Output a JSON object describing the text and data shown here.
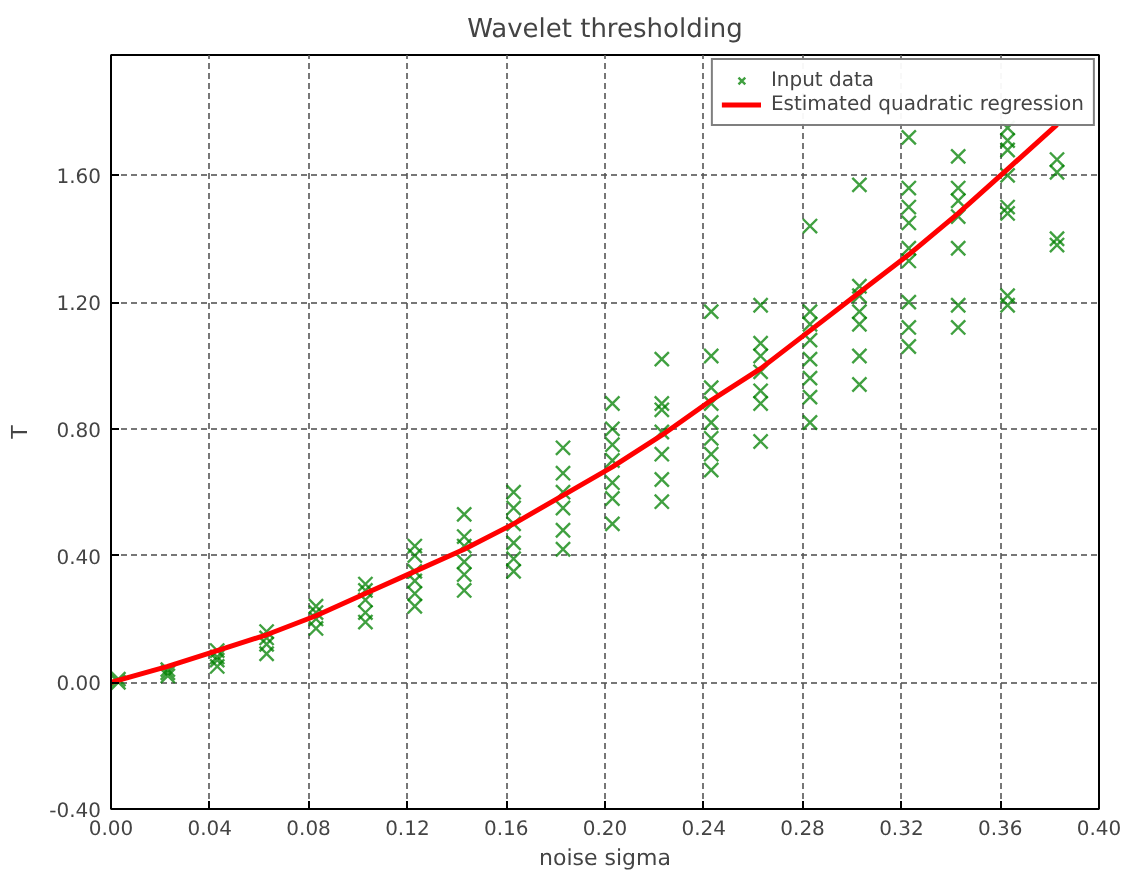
{
  "chart_data": {
    "type": "scatter",
    "title": "Wavelet thresholding",
    "xlabel": "noise sigma",
    "ylabel": "T",
    "xlim": [
      0,
      0.4
    ],
    "ylim": [
      -0.4,
      1.98
    ],
    "xticks": [
      {
        "value": 0,
        "label": "0.00"
      },
      {
        "value": 0.04,
        "label": "0.04"
      },
      {
        "value": 0.08,
        "label": "0.08"
      },
      {
        "value": 0.12,
        "label": "0.12"
      },
      {
        "value": 0.16,
        "label": "0.16"
      },
      {
        "value": 0.2,
        "label": "0.20"
      },
      {
        "value": 0.24,
        "label": "0.24"
      },
      {
        "value": 0.28,
        "label": "0.28"
      },
      {
        "value": 0.32,
        "label": "0.32"
      },
      {
        "value": 0.36,
        "label": "0.36"
      },
      {
        "value": 0.4,
        "label": "0.40"
      }
    ],
    "yticks": [
      {
        "value": -0.4,
        "label": "-0.40"
      },
      {
        "value": 0,
        "label": "0.00"
      },
      {
        "value": 0.4,
        "label": "0.40"
      },
      {
        "value": 0.8,
        "label": "0.80"
      },
      {
        "value": 1.2,
        "label": "1.20"
      },
      {
        "value": 1.6,
        "label": "1.60"
      }
    ],
    "grid": true,
    "legend": "top right",
    "series": [
      {
        "name": "Input data",
        "marker": "cross",
        "color": "#008000",
        "x": [
          0.003,
          0.003,
          0.023,
          0.023,
          0.023,
          0.043,
          0.043,
          0.043,
          0.043,
          0.063,
          0.063,
          0.063,
          0.063,
          0.083,
          0.083,
          0.083,
          0.083,
          0.103,
          0.103,
          0.103,
          0.103,
          0.103,
          0.123,
          0.123,
          0.123,
          0.123,
          0.123,
          0.123,
          0.143,
          0.143,
          0.143,
          0.143,
          0.143,
          0.143,
          0.163,
          0.163,
          0.163,
          0.163,
          0.163,
          0.163,
          0.183,
          0.183,
          0.183,
          0.183,
          0.183,
          0.183,
          0.203,
          0.203,
          0.203,
          0.203,
          0.203,
          0.203,
          0.203,
          0.223,
          0.223,
          0.223,
          0.223,
          0.223,
          0.223,
          0.223,
          0.243,
          0.243,
          0.243,
          0.243,
          0.243,
          0.243,
          0.243,
          0.243,
          0.263,
          0.263,
          0.263,
          0.263,
          0.263,
          0.263,
          0.263,
          0.283,
          0.283,
          0.283,
          0.283,
          0.283,
          0.283,
          0.283,
          0.283,
          0.303,
          0.303,
          0.303,
          0.303,
          0.303,
          0.303,
          0.303,
          0.323,
          0.323,
          0.323,
          0.323,
          0.323,
          0.323,
          0.323,
          0.323,
          0.323,
          0.343,
          0.343,
          0.343,
          0.343,
          0.343,
          0.343,
          0.343,
          0.363,
          0.363,
          0.363,
          0.363,
          0.363,
          0.363,
          0.363,
          0.363,
          0.383,
          0.383,
          0.383,
          0.383
        ],
        "values": [
          0.0,
          0.01,
          0.02,
          0.03,
          0.04,
          0.05,
          0.07,
          0.08,
          0.1,
          0.09,
          0.12,
          0.14,
          0.16,
          0.17,
          0.2,
          0.22,
          0.24,
          0.19,
          0.22,
          0.26,
          0.29,
          0.31,
          0.24,
          0.28,
          0.32,
          0.35,
          0.4,
          0.43,
          0.29,
          0.34,
          0.38,
          0.43,
          0.46,
          0.53,
          0.35,
          0.39,
          0.44,
          0.5,
          0.55,
          0.6,
          0.42,
          0.48,
          0.55,
          0.6,
          0.66,
          0.74,
          0.5,
          0.58,
          0.63,
          0.7,
          0.75,
          0.8,
          0.88,
          0.57,
          0.64,
          0.72,
          0.79,
          0.86,
          0.88,
          1.02,
          0.67,
          0.72,
          0.77,
          0.82,
          0.88,
          0.93,
          1.03,
          1.17,
          0.76,
          0.88,
          0.92,
          0.98,
          1.03,
          1.07,
          1.19,
          0.82,
          0.9,
          0.96,
          1.02,
          1.08,
          1.13,
          1.17,
          1.44,
          0.94,
          1.03,
          1.13,
          1.17,
          1.22,
          1.25,
          1.57,
          1.06,
          1.12,
          1.2,
          1.33,
          1.37,
          1.45,
          1.5,
          1.56,
          1.72,
          1.12,
          1.19,
          1.37,
          1.47,
          1.52,
          1.56,
          1.66,
          1.19,
          1.22,
          1.48,
          1.5,
          1.6,
          1.68,
          1.71,
          1.75,
          1.38,
          1.4,
          1.61,
          1.65
        ]
      },
      {
        "name": "Estimated quadratic regression",
        "type": "line",
        "line_style": "solid",
        "color": "#ff0000",
        "x": [
          0,
          0.023,
          0.043,
          0.063,
          0.083,
          0.103,
          0.123,
          0.143,
          0.163,
          0.183,
          0.203,
          0.223,
          0.243,
          0.263,
          0.283,
          0.303,
          0.323,
          0.343,
          0.363,
          0.383
        ],
        "values": [
          0,
          0.05,
          0.1,
          0.15,
          0.21,
          0.28,
          0.35,
          0.42,
          0.5,
          0.59,
          0.68,
          0.78,
          0.89,
          0.99,
          1.11,
          1.23,
          1.35,
          1.48,
          1.62,
          1.76
        ]
      }
    ]
  }
}
